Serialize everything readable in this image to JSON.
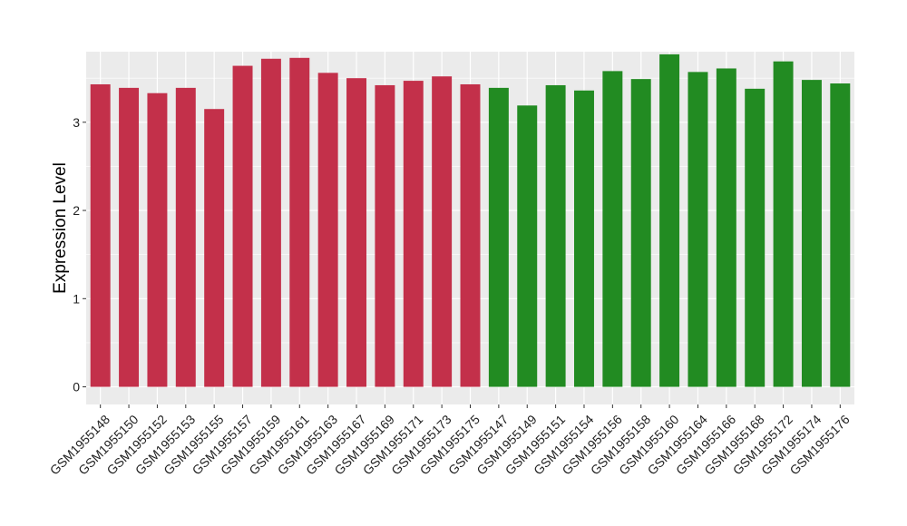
{
  "chart_data": {
    "type": "bar",
    "title": "",
    "xlabel": "",
    "ylabel": "Expression Level",
    "ylim": [
      -0.2,
      3.8
    ],
    "yticks": [
      0,
      1,
      2,
      3
    ],
    "grid": true,
    "legend": "none",
    "categories": [
      "GSM1955148",
      "GSM1955150",
      "GSM1955152",
      "GSM1955153",
      "GSM1955155",
      "GSM1955157",
      "GSM1955159",
      "GSM1955161",
      "GSM1955163",
      "GSM1955167",
      "GSM1955169",
      "GSM1955171",
      "GSM1955173",
      "GSM1955175",
      "GSM1955147",
      "GSM1955149",
      "GSM1955151",
      "GSM1955154",
      "GSM1955156",
      "GSM1955158",
      "GSM1955160",
      "GSM1955164",
      "GSM1955166",
      "GSM1955168",
      "GSM1955172",
      "GSM1955174",
      "GSM1955176"
    ],
    "values": [
      3.43,
      3.39,
      3.33,
      3.39,
      3.15,
      3.64,
      3.72,
      3.73,
      3.56,
      3.5,
      3.42,
      3.47,
      3.52,
      3.43,
      3.39,
      3.19,
      3.42,
      3.36,
      3.58,
      3.49,
      3.77,
      3.57,
      3.61,
      3.38,
      3.69,
      3.48,
      3.44
    ],
    "bar_colors": [
      "#c3304a",
      "#c3304a",
      "#c3304a",
      "#c3304a",
      "#c3304a",
      "#c3304a",
      "#c3304a",
      "#c3304a",
      "#c3304a",
      "#c3304a",
      "#c3304a",
      "#c3304a",
      "#c3304a",
      "#c3304a",
      "#228b22",
      "#228b22",
      "#228b22",
      "#228b22",
      "#228b22",
      "#228b22",
      "#228b22",
      "#228b22",
      "#228b22",
      "#228b22",
      "#228b22",
      "#228b22",
      "#228b22"
    ],
    "panel_background": "#ebebeb",
    "grid_color": "#ffffff"
  }
}
